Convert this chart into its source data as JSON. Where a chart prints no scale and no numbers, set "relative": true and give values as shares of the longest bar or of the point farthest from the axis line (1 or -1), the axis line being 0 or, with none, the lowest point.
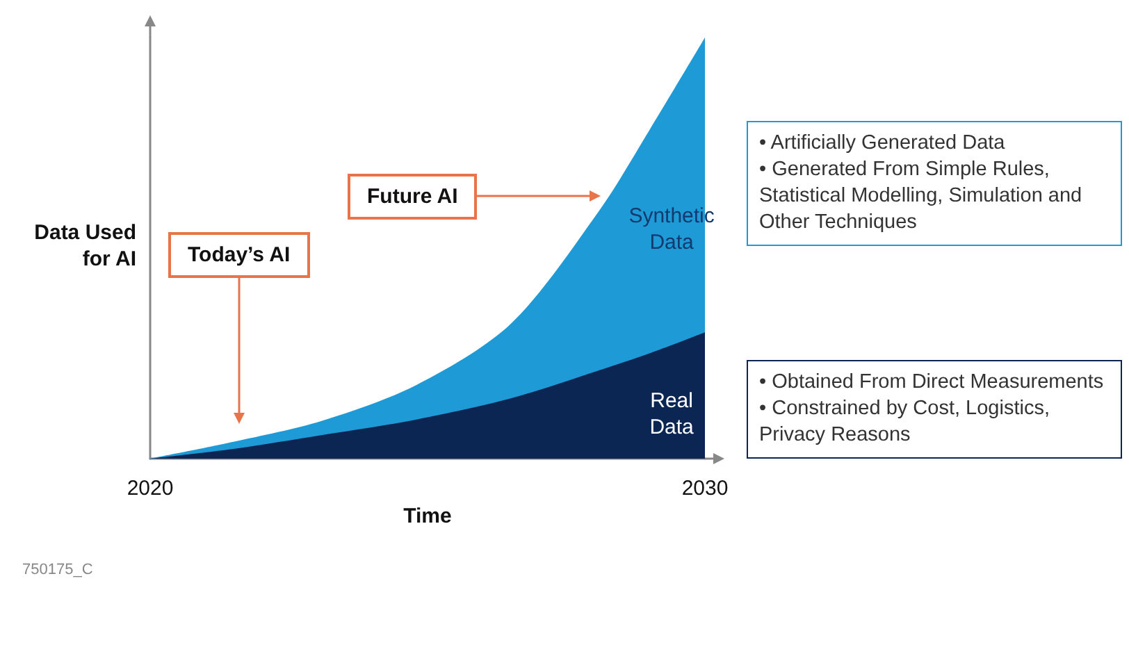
{
  "chart_data": {
    "type": "area",
    "stacked": true,
    "relative": true,
    "xlabel": "Time",
    "ylabel": "Data Used for AI",
    "x": [
      2020,
      2021.5,
      2023.1,
      2024.8,
      2026.5,
      2028.1,
      2029,
      2030
    ],
    "xlim": [
      2020,
      2030
    ],
    "xticks": [
      2020,
      2030
    ],
    "grid": false,
    "legend": false,
    "series": [
      {
        "name": "Real Data",
        "color": "#0b2653",
        "values": [
          0,
          0.023,
          0.056,
          0.093,
          0.143,
          0.21,
          0.25,
          0.3
        ]
      },
      {
        "name": "Synthetic Data",
        "color": "#1e9bd7",
        "values": [
          0,
          0.017,
          0.034,
          0.082,
          0.177,
          0.38,
          0.53,
          0.7
        ]
      }
    ],
    "annotations": [
      "Today’s AI",
      "Future AI",
      "• Artificially Generated Data\n• Generated From Simple Rules, Statistical Modelling, Simulation and Other Techniques",
      "• Obtained From Direct Measurements\n• Constrained by Cost, Logistics, Privacy Reasons",
      "750175_C"
    ]
  }
}
